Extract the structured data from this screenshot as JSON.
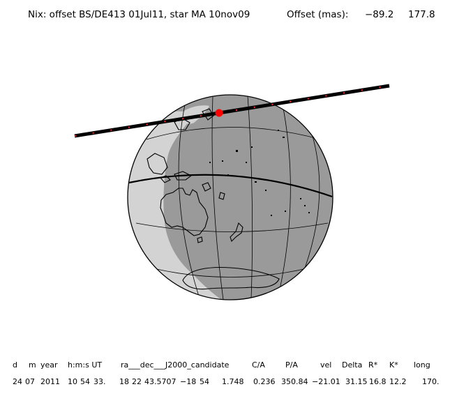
{
  "header": {
    "title": "Nix: offset BS/DE413 01Jul11, star MA 10nov09",
    "offset_label": "Offset (mas):",
    "offset_x": "−89.2",
    "offset_y": "177.8"
  },
  "footer": {
    "labels": [
      "d",
      "m",
      "year",
      "h:m:s UT",
      "ra___dec___J2000_candidate",
      "C/A",
      "P/A",
      "vel",
      "Delta",
      "R*",
      "K*",
      "long"
    ],
    "values": [
      "24",
      "07",
      "2011",
      "10",
      "54",
      "33.",
      "18",
      "22",
      "43.5707",
      "−18",
      "54",
      "1.748",
      "0.236",
      "350.84",
      "−21.01",
      "31.15",
      "16.8",
      "12.2",
      "170."
    ]
  },
  "colors": {
    "night": "#9a9a9a",
    "day": "#d3d3d3",
    "track": "#000000",
    "track_dots": "#ff2020",
    "event_point": "#ff0000"
  },
  "map": {
    "type": "orthographic-globe",
    "features": [
      "grid-lines",
      "equator",
      "coastlines",
      "day-night-terminator",
      "occultation-shadow-track",
      "event-marker"
    ]
  }
}
